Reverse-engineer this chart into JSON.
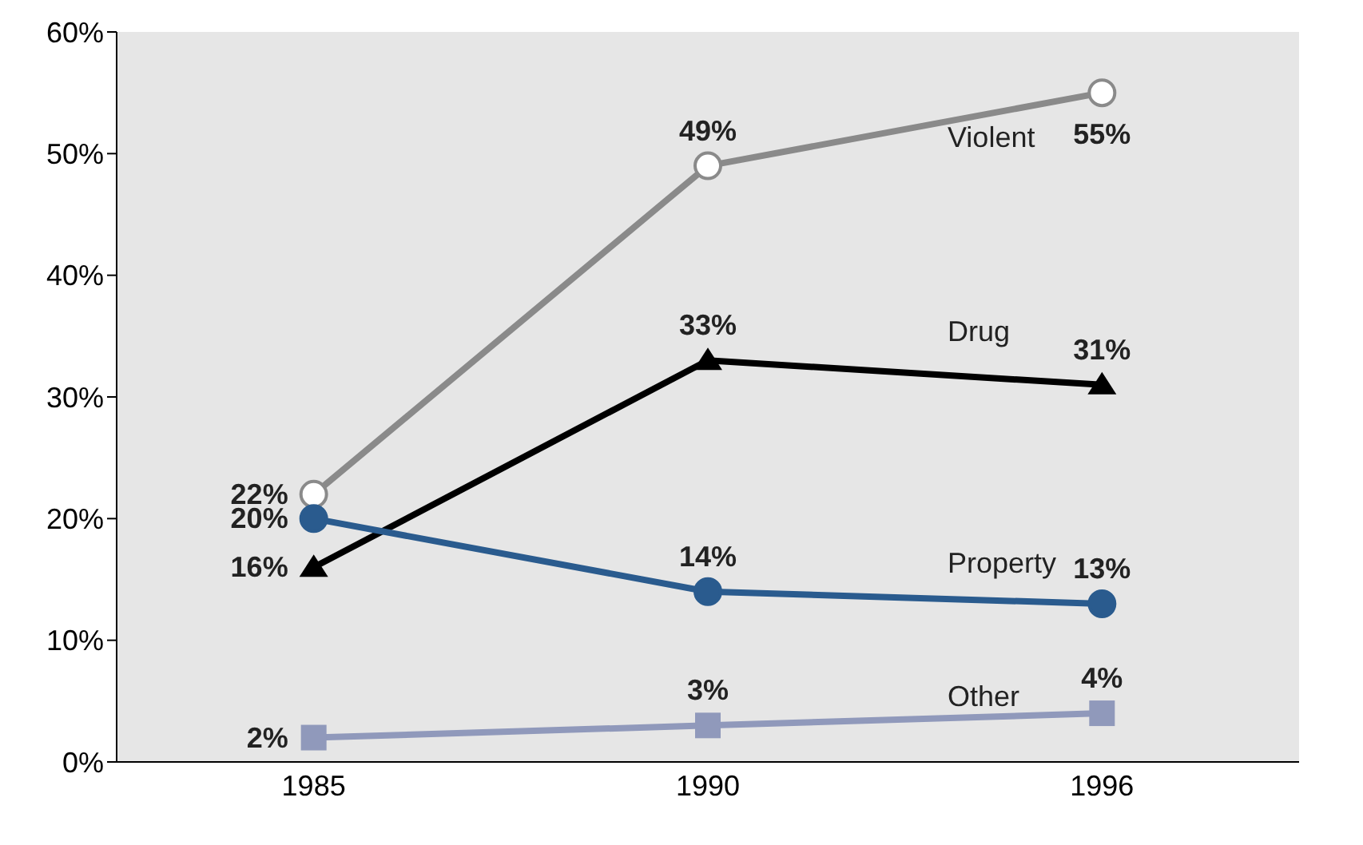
{
  "chart_data": {
    "type": "line",
    "categories": [
      "1985",
      "1990",
      "1996"
    ],
    "series": [
      {
        "name": "Violent",
        "color": "#8a8a8a",
        "values": [
          22,
          49,
          55
        ],
        "marker": "circle",
        "value_labels": [
          "22%",
          "49%",
          "55%"
        ]
      },
      {
        "name": "Drug",
        "color": "#000000",
        "values": [
          16,
          33,
          31
        ],
        "marker": "triangle",
        "value_labels": [
          "16%",
          "33%",
          "31%"
        ]
      },
      {
        "name": "Property",
        "color": "#2a5b8e",
        "values": [
          20,
          14,
          13
        ],
        "marker": "circle",
        "value_labels": [
          "20%",
          "14%",
          "13%"
        ]
      },
      {
        "name": "Other",
        "color": "#9099bb",
        "values": [
          2,
          3,
          4
        ],
        "marker": "square",
        "value_labels": [
          "2%",
          "3%",
          "4%"
        ]
      }
    ],
    "ylim": [
      0,
      60
    ],
    "yticks": [
      {
        "value": 0,
        "label": "0%"
      },
      {
        "value": 10,
        "label": "10%"
      },
      {
        "value": 20,
        "label": "20%"
      },
      {
        "value": 30,
        "label": "30%"
      },
      {
        "value": 40,
        "label": "40%"
      },
      {
        "value": 50,
        "label": "50%"
      },
      {
        "value": 60,
        "label": "60%"
      }
    ],
    "grid": false
  }
}
